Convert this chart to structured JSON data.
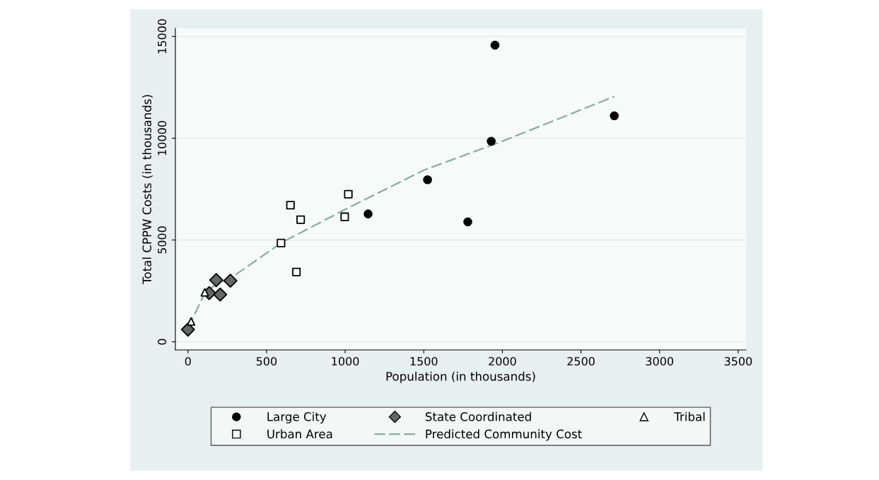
{
  "chart_data": {
    "type": "scatter",
    "xlabel": "Population (in thousands)",
    "ylabel": "Total CPPW Costs (in thousands)",
    "xlim": [
      -80,
      3550
    ],
    "ylim": [
      -400,
      15400
    ],
    "xticks": [
      0,
      500,
      1000,
      1500,
      2000,
      2500,
      3000,
      3500
    ],
    "yticks": [
      0,
      5000,
      10000,
      15000
    ],
    "grid": "y",
    "legend": "bottom",
    "series": [
      {
        "name": "Large City",
        "color": "#000000",
        "marker": "circle",
        "x": [
          1953,
          2712,
          1929,
          1524,
          1780,
          1146
        ],
        "values": [
          14570,
          11100,
          9850,
          7960,
          5890,
          6280
        ]
      },
      {
        "name": "State Coordinated",
        "color": "#666666",
        "marker": "diamond",
        "x": [
          0,
          135,
          180,
          205,
          270
        ],
        "values": [
          600,
          2390,
          3030,
          2320,
          3000
        ]
      },
      {
        "name": "Tribal",
        "color": "#ffffff",
        "marker": "triangle",
        "x": [
          107,
          20
        ],
        "values": [
          2430,
          1000
        ]
      },
      {
        "name": "Urban Area",
        "color": "#ffffff",
        "marker": "square",
        "x": [
          652,
          717,
          592,
          690,
          1020,
          997
        ],
        "values": [
          6710,
          6000,
          4850,
          3430,
          7250,
          6140
        ]
      },
      {
        "name": "Predicted Community Cost",
        "type": "line",
        "line_style": "dashed",
        "marker": "none",
        "color": "#8aab9e",
        "x": [
          0,
          20,
          116,
          300,
          600,
          1000,
          1500,
          2000,
          2712
        ],
        "values": [
          700,
          1000,
          2530,
          3280,
          4890,
          6500,
          8430,
          9850,
          12050
        ]
      }
    ]
  }
}
